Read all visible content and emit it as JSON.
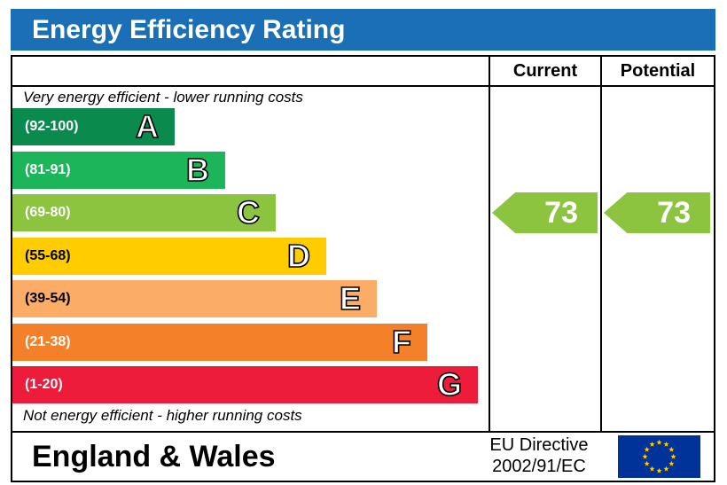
{
  "chart_data": {
    "type": "bar",
    "title": "Energy Efficiency Rating",
    "top_note": "Very energy efficient - lower running costs",
    "bottom_note": "Not energy efficient - higher running costs",
    "bands": [
      {
        "letter": "A",
        "range": "(92-100)",
        "min": 92,
        "max": 100,
        "color": "#0b8a4e"
      },
      {
        "letter": "B",
        "range": "(81-91)",
        "min": 81,
        "max": 91,
        "color": "#1db55a"
      },
      {
        "letter": "C",
        "range": "(69-80)",
        "min": 69,
        "max": 80,
        "color": "#8cc43f"
      },
      {
        "letter": "D",
        "range": "(55-68)",
        "min": 55,
        "max": 68,
        "color": "#ffcc00"
      },
      {
        "letter": "E",
        "range": "(39-54)",
        "min": 39,
        "max": 54,
        "color": "#fbad68"
      },
      {
        "letter": "F",
        "range": "(21-38)",
        "min": 21,
        "max": 38,
        "color": "#f4812a"
      },
      {
        "letter": "G",
        "range": "(1-20)",
        "min": 1,
        "max": 20,
        "color": "#ed1c3a"
      }
    ],
    "columns": [
      "Current",
      "Potential"
    ],
    "current": 73,
    "potential": 73
  },
  "footer": {
    "region": "England & Wales",
    "directive_line1": "EU Directive",
    "directive_line2": "2002/91/EC"
  },
  "colors": {
    "header_bg": "#1a6fb6",
    "eu_flag_bg": "#003399",
    "eu_star": "#ffcc00"
  }
}
